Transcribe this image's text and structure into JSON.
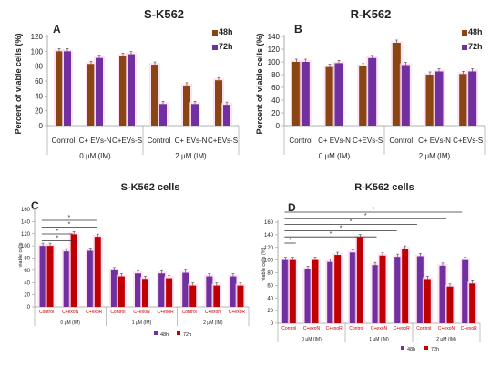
{
  "chart_data": [
    {
      "id": "A",
      "type": "bar",
      "title": "S-K562",
      "letter": "A",
      "ylabel": "Percent of viable cells (%)",
      "ylim": [
        0,
        120
      ],
      "yticks": [
        0,
        20,
        40,
        60,
        80,
        100,
        120
      ],
      "categories": [
        "Control",
        "C+ EVs-N",
        "C+EVs-S",
        "Control",
        "C+ EVs-N",
        "C+EVs-S"
      ],
      "groups": [
        {
          "label": "0 μM (IM)",
          "span": [
            0,
            2
          ]
        },
        {
          "label": "2 μM (IM)",
          "span": [
            3,
            5
          ]
        }
      ],
      "series": [
        {
          "name": "48h",
          "color": "#8B4513",
          "values": [
            100,
            83,
            94,
            82,
            54,
            61
          ]
        },
        {
          "name": "72h",
          "color": "#7030A0",
          "values": [
            100,
            91,
            96,
            29,
            29,
            28
          ]
        }
      ],
      "legend_position": "top-right",
      "grid": false
    },
    {
      "id": "B",
      "type": "bar",
      "title": "R-K562",
      "letter": "B",
      "ylabel": "Percent of viable cells (%)",
      "ylim": [
        0,
        140
      ],
      "yticks": [
        0,
        20,
        40,
        60,
        80,
        100,
        120,
        140
      ],
      "categories": [
        "Control",
        "C+ EVs-N",
        "C+EVs-S",
        "Control",
        "C+ EVs-N",
        "C+EVs-S"
      ],
      "groups": [
        {
          "label": "0 μM (IM)",
          "span": [
            0,
            2
          ]
        },
        {
          "label": "2 μM (IM)",
          "span": [
            3,
            5
          ]
        }
      ],
      "series": [
        {
          "name": "48h",
          "color": "#8B4513",
          "values": [
            100,
            92,
            93,
            130,
            80,
            81
          ]
        },
        {
          "name": "72h",
          "color": "#7030A0",
          "values": [
            100,
            98,
            106,
            95,
            85,
            85
          ]
        }
      ],
      "legend_position": "top-right",
      "grid": false
    },
    {
      "id": "C",
      "type": "bar",
      "title": "S-K562 cells",
      "letter": "C",
      "ylabel": "viable cells",
      "ylim": [
        0,
        160
      ],
      "yticks": [
        0,
        20,
        40,
        60,
        80,
        100,
        120,
        140,
        160
      ],
      "categories": [
        "Control",
        "C+exoN",
        "C+exoR",
        "Control",
        "C+exoN",
        "C+exoR",
        "Control",
        "C+exoN",
        "C+exoR"
      ],
      "groups": [
        {
          "label": "0 μM (IM)",
          "span": [
            0,
            2
          ]
        },
        {
          "label": "1 μM (IM)",
          "span": [
            3,
            5
          ]
        },
        {
          "label": "2 μM (IM)",
          "span": [
            6,
            8
          ]
        }
      ],
      "series": [
        {
          "name": "48h",
          "color": "#7030A0",
          "values": [
            100,
            91,
            92,
            60,
            55,
            55,
            56,
            50,
            50
          ]
        },
        {
          "name": "72h",
          "color": "#C00000",
          "values": [
            100,
            119,
            115,
            50,
            46,
            47,
            35,
            35,
            35
          ]
        }
      ],
      "significance": [
        "*",
        "*",
        "*",
        "*"
      ],
      "legend_position": "bottom-center",
      "grid": false
    },
    {
      "id": "D",
      "type": "bar",
      "title": "R-K562 cells",
      "letter": "D",
      "ylabel": "viable cells (%)",
      "ylim": [
        0,
        160
      ],
      "yticks": [
        0,
        20,
        40,
        60,
        80,
        100,
        120,
        140,
        160
      ],
      "categories": [
        "Control",
        "C+exoN",
        "C+exoR",
        "Control",
        "C+exoN",
        "C+exoR",
        "Control",
        "C+exoN",
        "C+exoR"
      ],
      "groups": [
        {
          "label": "0 μM (IM)",
          "span": [
            0,
            2
          ]
        },
        {
          "label": "1 μM (IM)",
          "span": [
            3,
            5
          ]
        },
        {
          "label": "2 μM (IM)",
          "span": [
            6,
            8
          ]
        }
      ],
      "series": [
        {
          "name": "48h",
          "color": "#7030A0",
          "values": [
            100,
            86,
            97,
            112,
            92,
            105,
            106,
            91,
            100
          ]
        },
        {
          "name": "72h",
          "color": "#C00000",
          "values": [
            100,
            100,
            108,
            136,
            107,
            118,
            70,
            58,
            63
          ]
        }
      ],
      "significance": [
        "*",
        "*",
        "*",
        "*",
        "*",
        "*"
      ],
      "legend_position": "bottom-center",
      "grid": false
    }
  ]
}
